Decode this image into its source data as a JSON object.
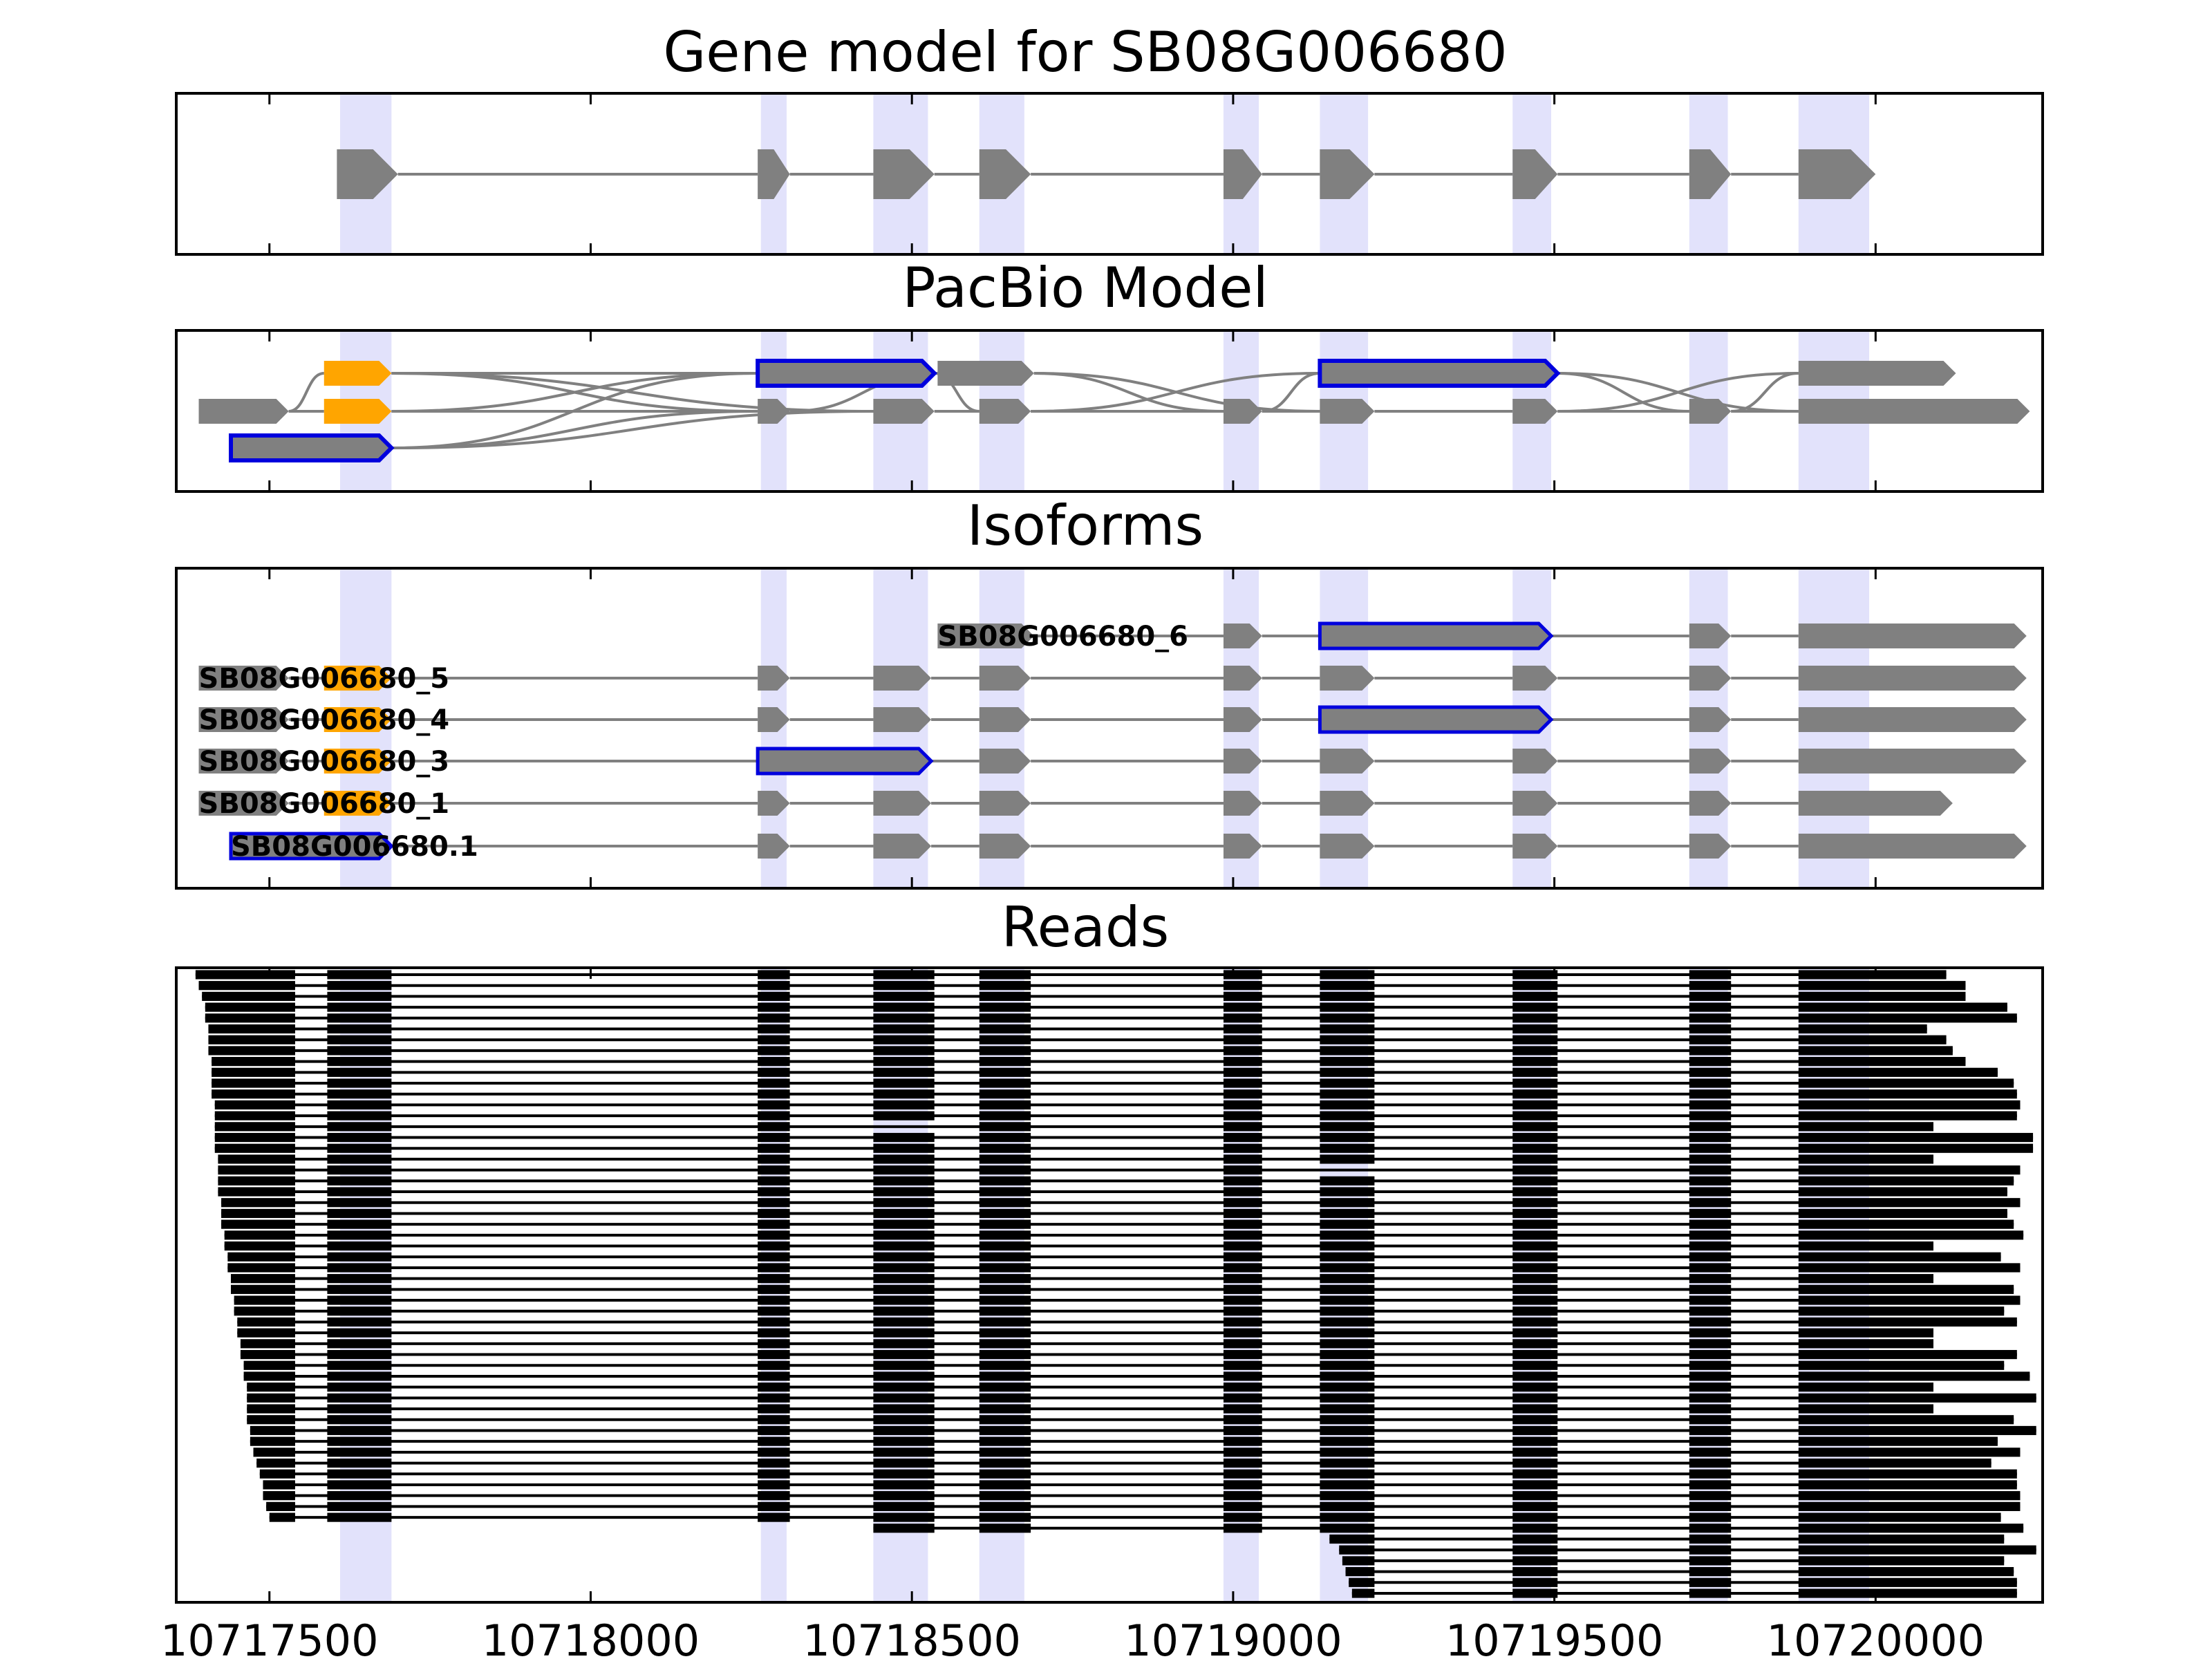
{
  "chart_data": {
    "type": "gene-structure",
    "xlim": [
      10717355,
      10720260
    ],
    "x_ticks": [
      10717500,
      10718000,
      10718500,
      10719000,
      10719500,
      10720000
    ],
    "colors": {
      "exon": "#808080",
      "edge": "#0000dd",
      "utr_alt": "#ffa500",
      "highlight": "#e2e2fb",
      "read": "#000000",
      "intron": "#808080"
    },
    "highlight_exons": [
      [
        10717610,
        10717690
      ],
      [
        10718265,
        10718305
      ],
      [
        10718440,
        10718525
      ],
      [
        10718605,
        10718675
      ],
      [
        10718985,
        10719040
      ],
      [
        10719135,
        10719210
      ],
      [
        10719435,
        10719495
      ],
      [
        10719710,
        10719770
      ],
      [
        10719880,
        10719990
      ]
    ],
    "panels": [
      {
        "id": "gene-model",
        "title": "Gene model for SB08G006680",
        "rows": [
          {
            "label": "",
            "exons": [
              [
                10717605,
                10717700,
                "exon"
              ],
              [
                10718260,
                10718310,
                "exon"
              ],
              [
                10718440,
                10718535,
                "exon"
              ],
              [
                10718605,
                10718685,
                "exon"
              ],
              [
                10718985,
                10719045,
                "exon"
              ],
              [
                10719135,
                10719220,
                "exon"
              ],
              [
                10719435,
                10719505,
                "exon"
              ],
              [
                10719710,
                10719775,
                "exon"
              ],
              [
                10719880,
                10720000,
                "exon"
              ]
            ]
          }
        ]
      },
      {
        "id": "pacbio-model",
        "title": "PacBio Model",
        "rows": [
          {
            "label": "",
            "exons": [
              [
                10717585,
                10717690,
                "utr"
              ],
              [
                10718260,
                10718535,
                "edge"
              ],
              [
                10718540,
                10718690,
                "exon"
              ],
              [
                10719135,
                10719505,
                "edge"
              ],
              [
                10719880,
                10720125,
                "exon"
              ]
            ]
          },
          {
            "label": "",
            "exons": [
              [
                10717390,
                10717530,
                "exon"
              ],
              [
                10717585,
                10717690,
                "utr"
              ],
              [
                10718260,
                10718310,
                "exon"
              ],
              [
                10718440,
                10718535,
                "exon"
              ],
              [
                10718605,
                10718685,
                "exon"
              ],
              [
                10718985,
                10719045,
                "exon"
              ],
              [
                10719135,
                10719220,
                "exon"
              ],
              [
                10719435,
                10719505,
                "exon"
              ],
              [
                10719710,
                10719775,
                "exon"
              ],
              [
                10719880,
                10720240,
                "exon"
              ]
            ]
          },
          {
            "label": "",
            "exons": [
              [
                10717440,
                10717690,
                "edge"
              ]
            ]
          }
        ]
      },
      {
        "id": "isoforms",
        "title": "Isoforms",
        "rows": [
          {
            "label": "SB08G006680_6",
            "exons": [
              [
                10718540,
                10718690,
                "exon"
              ],
              [
                10718985,
                10719045,
                "exon"
              ],
              [
                10719135,
                10719495,
                "edge"
              ],
              [
                10719710,
                10719775,
                "exon"
              ],
              [
                10719880,
                10720235,
                "exon"
              ]
            ]
          },
          {
            "label": "SB08G006680_5",
            "exons": [
              [
                10717390,
                10717530,
                "exon"
              ],
              [
                10717585,
                10717690,
                "utr"
              ],
              [
                10718260,
                10718310,
                "exon"
              ],
              [
                10718440,
                10718530,
                "exon"
              ],
              [
                10718605,
                10718685,
                "exon"
              ],
              [
                10718985,
                10719045,
                "exon"
              ],
              [
                10719135,
                10719220,
                "exon"
              ],
              [
                10719435,
                10719505,
                "exon"
              ],
              [
                10719710,
                10719775,
                "exon"
              ],
              [
                10719880,
                10720235,
                "exon"
              ]
            ]
          },
          {
            "label": "SB08G006680_4",
            "exons": [
              [
                10717390,
                10717530,
                "exon"
              ],
              [
                10717585,
                10717690,
                "utr"
              ],
              [
                10718260,
                10718310,
                "exon"
              ],
              [
                10718440,
                10718530,
                "exon"
              ],
              [
                10718605,
                10718685,
                "exon"
              ],
              [
                10718985,
                10719045,
                "exon"
              ],
              [
                10719135,
                10719495,
                "edge"
              ],
              [
                10719710,
                10719775,
                "exon"
              ],
              [
                10719880,
                10720235,
                "exon"
              ]
            ]
          },
          {
            "label": "SB08G006680_3",
            "exons": [
              [
                10717390,
                10717530,
                "exon"
              ],
              [
                10717585,
                10717690,
                "utr"
              ],
              [
                10718260,
                10718530,
                "edge"
              ],
              [
                10718605,
                10718685,
                "exon"
              ],
              [
                10718985,
                10719045,
                "exon"
              ],
              [
                10719135,
                10719220,
                "exon"
              ],
              [
                10719435,
                10719505,
                "exon"
              ],
              [
                10719710,
                10719775,
                "exon"
              ],
              [
                10719880,
                10720235,
                "exon"
              ]
            ]
          },
          {
            "label": "SB08G006680_1",
            "exons": [
              [
                10717390,
                10717530,
                "exon"
              ],
              [
                10717585,
                10717690,
                "utr"
              ],
              [
                10718260,
                10718310,
                "exon"
              ],
              [
                10718440,
                10718530,
                "exon"
              ],
              [
                10718605,
                10718685,
                "exon"
              ],
              [
                10718985,
                10719045,
                "exon"
              ],
              [
                10719135,
                10719220,
                "exon"
              ],
              [
                10719435,
                10719505,
                "exon"
              ],
              [
                10719710,
                10719775,
                "exon"
              ],
              [
                10719880,
                10720120,
                "exon"
              ]
            ]
          },
          {
            "label": "SB08G006680.1",
            "exons": [
              [
                10717440,
                10717690,
                "edge"
              ],
              [
                10718260,
                10718310,
                "exon"
              ],
              [
                10718440,
                10718530,
                "exon"
              ],
              [
                10718605,
                10718685,
                "exon"
              ],
              [
                10718985,
                10719045,
                "exon"
              ],
              [
                10719135,
                10719220,
                "exon"
              ],
              [
                10719435,
                10719505,
                "exon"
              ],
              [
                10719710,
                10719775,
                "exon"
              ],
              [
                10719880,
                10720235,
                "exon"
              ]
            ]
          }
        ]
      }
    ],
    "reads": {
      "title": "Reads",
      "blocks": [
        [
          10717355,
          10717540
        ],
        [
          10717590,
          10717690
        ],
        [
          10718260,
          10718310
        ],
        [
          10718440,
          10718535
        ],
        [
          10718605,
          10718685
        ],
        [
          10718985,
          10719045
        ],
        [
          10719135,
          10719220
        ],
        [
          10719435,
          10719505
        ],
        [
          10719710,
          10719775
        ],
        [
          10719880,
          10720260
        ]
      ],
      "rows": [
        [
          10717385,
          10720110
        ],
        [
          10717390,
          10720140
        ],
        [
          10717395,
          10720140
        ],
        [
          10717400,
          10720205
        ],
        [
          10717400,
          10720220
        ],
        [
          10717405,
          10720080
        ],
        [
          10717405,
          10720110
        ],
        [
          10717405,
          10720120
        ],
        [
          10717410,
          10720140
        ],
        [
          10717410,
          10720190
        ],
        [
          10717410,
          10720215
        ],
        [
          10717410,
          10720220
        ],
        [
          10717415,
          10720225
        ],
        [
          10717415,
          10720220
        ],
        [
          10717415,
          10720090
        ],
        [
          10717415,
          10720245
        ],
        [
          10717415,
          10720245
        ],
        [
          10717420,
          10720090
        ],
        [
          10717420,
          10720225
        ],
        [
          10717420,
          10720215
        ],
        [
          10717420,
          10720205
        ],
        [
          10717425,
          10720225
        ],
        [
          10717425,
          10720205
        ],
        [
          10717425,
          10720215
        ],
        [
          10717430,
          10720230
        ],
        [
          10717430,
          10720090
        ],
        [
          10717435,
          10720195
        ],
        [
          10717435,
          10720225
        ],
        [
          10717440,
          10720090
        ],
        [
          10717440,
          10720215
        ],
        [
          10717445,
          10720225
        ],
        [
          10717445,
          10720200
        ],
        [
          10717450,
          10720220
        ],
        [
          10717450,
          10720090
        ],
        [
          10717455,
          10720090
        ],
        [
          10717455,
          10720220
        ],
        [
          10717460,
          10720200
        ],
        [
          10717460,
          10720240
        ],
        [
          10717465,
          10720090
        ],
        [
          10717465,
          10720250
        ],
        [
          10717465,
          10720090
        ],
        [
          10717465,
          10720215
        ],
        [
          10717470,
          10720250
        ],
        [
          10717470,
          10720190
        ],
        [
          10717475,
          10720225
        ],
        [
          10717480,
          10720180
        ],
        [
          10717485,
          10720220
        ],
        [
          10717490,
          10720220
        ],
        [
          10717490,
          10720225
        ],
        [
          10717495,
          10720225
        ],
        [
          10717500,
          10720195
        ],
        [
          10718440,
          10720230
        ],
        [
          10719150,
          10720200
        ],
        [
          10719165,
          10720250
        ],
        [
          10719170,
          10720200
        ],
        [
          10719175,
          10720215
        ],
        [
          10719180,
          10720220
        ],
        [
          10719185,
          10720220
        ]
      ],
      "skipped_exon_rows": [
        {
          "row": 14,
          "block": [
            10718440,
            10718535
          ]
        },
        {
          "row": 18,
          "block": [
            10719135,
            10719220
          ]
        }
      ]
    },
    "title": "Gene model for SB08G006680"
  }
}
